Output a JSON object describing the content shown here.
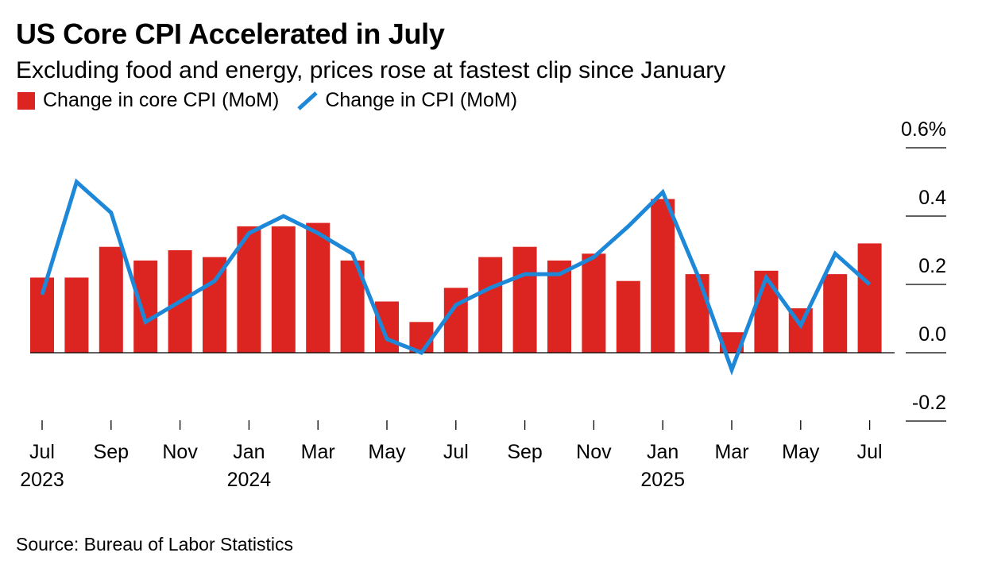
{
  "header": {
    "title": "US Core CPI Accelerated in July",
    "subtitle": "Excluding food and energy, prices rose at fastest clip since January"
  },
  "legend": {
    "bars_label": "Change in core CPI (MoM)",
    "line_label": "Change in CPI (MoM)"
  },
  "footer": {
    "source": "Source: Bureau of Labor Statistics"
  },
  "colors": {
    "bars": "#dc2420",
    "line": "#1e88d8",
    "axis": "#000000"
  },
  "chart_data": {
    "type": "bar",
    "title": "US Core CPI Accelerated in July",
    "xlabel": "",
    "ylabel": "",
    "ylim": [
      -0.2,
      0.6
    ],
    "grid": false,
    "legend_position": "top-left",
    "y_ticks": [
      {
        "value": 0.6,
        "label": "0.6%"
      },
      {
        "value": 0.4,
        "label": "0.4"
      },
      {
        "value": 0.2,
        "label": "0.2"
      },
      {
        "value": 0.0,
        "label": "0.0"
      },
      {
        "value": -0.2,
        "label": "-0.2"
      }
    ],
    "categories": [
      "Jul 2023",
      "Aug 2023",
      "Sep 2023",
      "Oct 2023",
      "Nov 2023",
      "Dec 2023",
      "Jan 2024",
      "Feb 2024",
      "Mar 2024",
      "Apr 2024",
      "May 2024",
      "Jun 2024",
      "Jul 2024",
      "Aug 2024",
      "Sep 2024",
      "Oct 2024",
      "Nov 2024",
      "Dec 2024",
      "Jan 2025",
      "Feb 2025",
      "Mar 2025",
      "Apr 2025",
      "May 2025",
      "Jun 2025",
      "Jul 2025"
    ],
    "x_ticks": [
      {
        "index": 0,
        "month": "Jul",
        "year": "2023"
      },
      {
        "index": 2,
        "month": "Sep",
        "year": ""
      },
      {
        "index": 4,
        "month": "Nov",
        "year": ""
      },
      {
        "index": 6,
        "month": "Jan",
        "year": "2024"
      },
      {
        "index": 8,
        "month": "Mar",
        "year": ""
      },
      {
        "index": 10,
        "month": "May",
        "year": ""
      },
      {
        "index": 12,
        "month": "Jul",
        "year": ""
      },
      {
        "index": 14,
        "month": "Sep",
        "year": ""
      },
      {
        "index": 16,
        "month": "Nov",
        "year": ""
      },
      {
        "index": 18,
        "month": "Jan",
        "year": "2025"
      },
      {
        "index": 20,
        "month": "Mar",
        "year": ""
      },
      {
        "index": 22,
        "month": "May",
        "year": ""
      },
      {
        "index": 24,
        "month": "Jul",
        "year": ""
      }
    ],
    "series": [
      {
        "name": "Change in core CPI (MoM)",
        "kind": "bar",
        "values": [
          0.22,
          0.22,
          0.31,
          0.27,
          0.3,
          0.28,
          0.37,
          0.37,
          0.38,
          0.27,
          0.15,
          0.09,
          0.19,
          0.28,
          0.31,
          0.27,
          0.29,
          0.21,
          0.45,
          0.23,
          0.06,
          0.24,
          0.13,
          0.23,
          0.32
        ]
      },
      {
        "name": "Change in CPI (MoM)",
        "kind": "line",
        "values": [
          0.17,
          0.5,
          0.41,
          0.09,
          0.15,
          0.21,
          0.35,
          0.4,
          0.35,
          0.29,
          0.04,
          0.0,
          0.14,
          0.19,
          0.23,
          0.23,
          0.28,
          0.37,
          0.47,
          0.23,
          -0.05,
          0.22,
          0.08,
          0.29,
          0.2
        ]
      }
    ]
  }
}
